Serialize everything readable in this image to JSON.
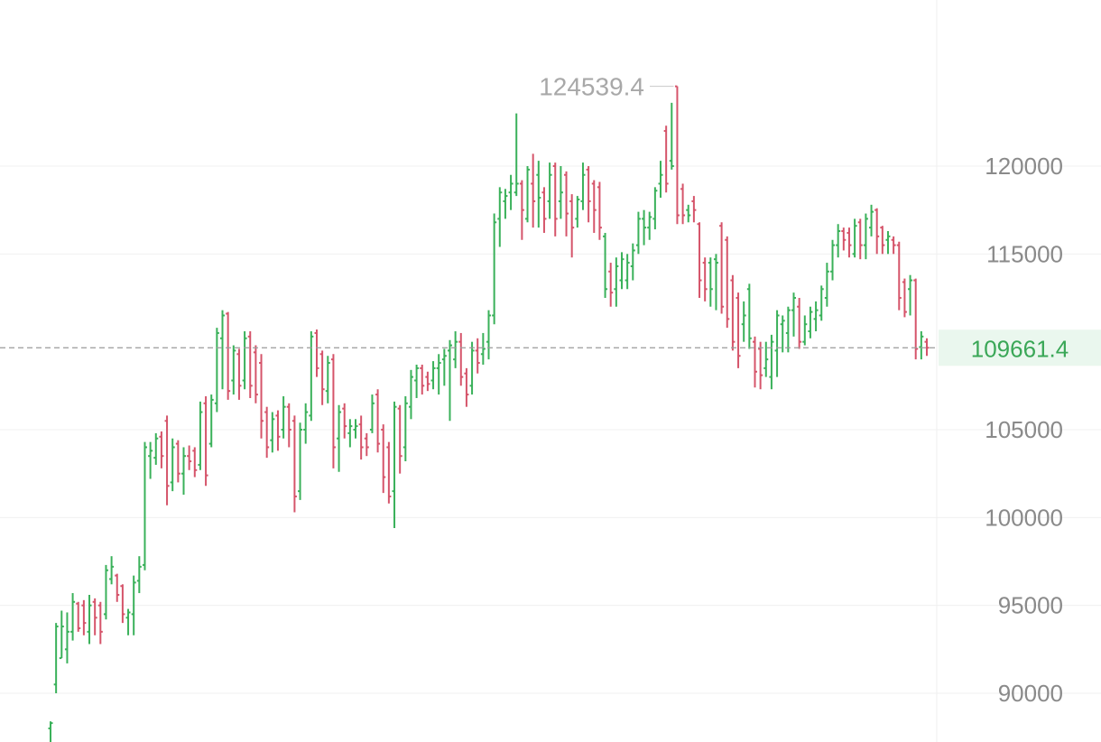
{
  "chart_data": {
    "type": "ohlc",
    "y_axis": {
      "position": "right",
      "ylim": [
        88000,
        126500
      ],
      "ticks": [
        120000,
        115000,
        105000,
        100000,
        95000,
        90000
      ],
      "tick_labels": [
        "120000",
        "115000",
        "105000",
        "100000",
        "95000",
        "90000"
      ],
      "grid": true
    },
    "annotations": {
      "max_price_label": "124539.4",
      "max_price": 124539.4,
      "last_price_label": "109661.4",
      "last_price": 109661.4
    },
    "colors": {
      "up": "#3ab15a",
      "down": "#d5546a",
      "grid": "#f0f0f0",
      "last_price_line": "#9a9a9a",
      "last_price_bg": "#eaf7ee",
      "last_price_text": "#3aa757",
      "max_label": "#a8a8a8"
    },
    "bars": [
      {
        "o": 88000,
        "h": 88400,
        "l": 87000,
        "c": 88300,
        "up": true
      },
      {
        "o": 90500,
        "h": 94000,
        "l": 90000,
        "c": 93800,
        "up": true
      },
      {
        "o": 92000,
        "h": 94700,
        "l": 92000,
        "c": 93800,
        "up": true
      },
      {
        "o": 92500,
        "h": 94600,
        "l": 91700,
        "c": 93500,
        "up": true
      },
      {
        "o": 93500,
        "h": 95700,
        "l": 93000,
        "c": 95200,
        "up": true
      },
      {
        "o": 95100,
        "h": 95200,
        "l": 93500,
        "c": 93700,
        "up": false
      },
      {
        "o": 95000,
        "h": 95300,
        "l": 93300,
        "c": 94000,
        "up": false
      },
      {
        "o": 93500,
        "h": 95600,
        "l": 92800,
        "c": 95000,
        "up": true
      },
      {
        "o": 95200,
        "h": 95400,
        "l": 93300,
        "c": 94300,
        "up": false
      },
      {
        "o": 95000,
        "h": 95200,
        "l": 92800,
        "c": 93500,
        "up": false
      },
      {
        "o": 94500,
        "h": 97300,
        "l": 94200,
        "c": 97000,
        "up": true
      },
      {
        "o": 96500,
        "h": 97800,
        "l": 96200,
        "c": 97200,
        "up": true
      },
      {
        "o": 96700,
        "h": 96800,
        "l": 95200,
        "c": 95600,
        "up": false
      },
      {
        "o": 96100,
        "h": 96200,
        "l": 94000,
        "c": 94500,
        "up": false
      },
      {
        "o": 94300,
        "h": 94800,
        "l": 93300,
        "c": 94600,
        "up": true
      },
      {
        "o": 94500,
        "h": 96700,
        "l": 93300,
        "c": 96300,
        "up": true
      },
      {
        "o": 96400,
        "h": 97800,
        "l": 95700,
        "c": 97200,
        "up": true
      },
      {
        "o": 97300,
        "h": 104300,
        "l": 97000,
        "c": 104000,
        "up": true
      },
      {
        "o": 103500,
        "h": 104300,
        "l": 102200,
        "c": 103800,
        "up": true
      },
      {
        "o": 103400,
        "h": 104800,
        "l": 103000,
        "c": 104500,
        "up": true
      },
      {
        "o": 104600,
        "h": 104900,
        "l": 102800,
        "c": 103500,
        "up": false
      },
      {
        "o": 105500,
        "h": 105800,
        "l": 100700,
        "c": 101800,
        "up": false
      },
      {
        "o": 102000,
        "h": 104500,
        "l": 101500,
        "c": 104000,
        "up": true
      },
      {
        "o": 104200,
        "h": 104400,
        "l": 102000,
        "c": 102500,
        "up": false
      },
      {
        "o": 102500,
        "h": 104000,
        "l": 101300,
        "c": 103500,
        "up": true
      },
      {
        "o": 103500,
        "h": 104100,
        "l": 102700,
        "c": 103200,
        "up": false
      },
      {
        "o": 103800,
        "h": 104000,
        "l": 102300,
        "c": 102700,
        "up": false
      },
      {
        "o": 103000,
        "h": 106600,
        "l": 102700,
        "c": 106000,
        "up": true
      },
      {
        "o": 106500,
        "h": 106900,
        "l": 101800,
        "c": 102400,
        "up": false
      },
      {
        "o": 104200,
        "h": 107000,
        "l": 104000,
        "c": 106700,
        "up": true
      },
      {
        "o": 106500,
        "h": 110800,
        "l": 106000,
        "c": 110500,
        "up": true
      },
      {
        "o": 110200,
        "h": 111800,
        "l": 107300,
        "c": 111500,
        "up": true
      },
      {
        "o": 111600,
        "h": 111700,
        "l": 106700,
        "c": 107200,
        "up": false
      },
      {
        "o": 107800,
        "h": 109800,
        "l": 107000,
        "c": 109500,
        "up": true
      },
      {
        "o": 109300,
        "h": 109600,
        "l": 106700,
        "c": 107500,
        "up": false
      },
      {
        "o": 107800,
        "h": 110600,
        "l": 107300,
        "c": 110200,
        "up": true
      },
      {
        "o": 110300,
        "h": 110600,
        "l": 106800,
        "c": 107500,
        "up": false
      },
      {
        "o": 109400,
        "h": 109800,
        "l": 106500,
        "c": 107000,
        "up": false
      },
      {
        "o": 108800,
        "h": 109300,
        "l": 104500,
        "c": 105500,
        "up": false
      },
      {
        "o": 106000,
        "h": 106300,
        "l": 103400,
        "c": 104000,
        "up": false
      },
      {
        "o": 104400,
        "h": 106000,
        "l": 103700,
        "c": 105600,
        "up": true
      },
      {
        "o": 105800,
        "h": 106100,
        "l": 103800,
        "c": 104600,
        "up": false
      },
      {
        "o": 105000,
        "h": 106900,
        "l": 104500,
        "c": 106300,
        "up": true
      },
      {
        "o": 106300,
        "h": 106500,
        "l": 104000,
        "c": 105000,
        "up": false
      },
      {
        "o": 105500,
        "h": 105800,
        "l": 100300,
        "c": 101200,
        "up": false
      },
      {
        "o": 101500,
        "h": 105400,
        "l": 101000,
        "c": 105000,
        "up": true
      },
      {
        "o": 105000,
        "h": 106500,
        "l": 104200,
        "c": 106000,
        "up": true
      },
      {
        "o": 105800,
        "h": 110600,
        "l": 105500,
        "c": 110300,
        "up": true
      },
      {
        "o": 110500,
        "h": 110700,
        "l": 108000,
        "c": 108500,
        "up": false
      },
      {
        "o": 109300,
        "h": 109500,
        "l": 106400,
        "c": 107300,
        "up": false
      },
      {
        "o": 107200,
        "h": 109200,
        "l": 106500,
        "c": 108800,
        "up": true
      },
      {
        "o": 109000,
        "h": 109300,
        "l": 102800,
        "c": 104000,
        "up": false
      },
      {
        "o": 104500,
        "h": 106400,
        "l": 102600,
        "c": 106000,
        "up": true
      },
      {
        "o": 106200,
        "h": 106500,
        "l": 104500,
        "c": 105200,
        "up": false
      },
      {
        "o": 104800,
        "h": 105600,
        "l": 104000,
        "c": 105200,
        "up": true
      },
      {
        "o": 105000,
        "h": 105600,
        "l": 104500,
        "c": 105200,
        "up": true
      },
      {
        "o": 105300,
        "h": 105800,
        "l": 103300,
        "c": 104000,
        "up": false
      },
      {
        "o": 104500,
        "h": 104800,
        "l": 103500,
        "c": 104000,
        "up": false
      },
      {
        "o": 105000,
        "h": 107000,
        "l": 104800,
        "c": 106500,
        "up": true
      },
      {
        "o": 107000,
        "h": 107300,
        "l": 103700,
        "c": 104200,
        "up": false
      },
      {
        "o": 105000,
        "h": 105300,
        "l": 101400,
        "c": 102300,
        "up": false
      },
      {
        "o": 104000,
        "h": 104300,
        "l": 100800,
        "c": 101200,
        "up": false
      },
      {
        "o": 101500,
        "h": 106600,
        "l": 99400,
        "c": 106300,
        "up": true
      },
      {
        "o": 106200,
        "h": 106400,
        "l": 102500,
        "c": 103500,
        "up": false
      },
      {
        "o": 104000,
        "h": 106900,
        "l": 103200,
        "c": 106500,
        "up": true
      },
      {
        "o": 106300,
        "h": 108400,
        "l": 105600,
        "c": 108000,
        "up": true
      },
      {
        "o": 107800,
        "h": 108700,
        "l": 106800,
        "c": 108500,
        "up": true
      },
      {
        "o": 108500,
        "h": 108700,
        "l": 107000,
        "c": 107500,
        "up": false
      },
      {
        "o": 108000,
        "h": 108300,
        "l": 107200,
        "c": 107600,
        "up": false
      },
      {
        "o": 107800,
        "h": 108900,
        "l": 107300,
        "c": 108500,
        "up": true
      },
      {
        "o": 108500,
        "h": 109300,
        "l": 107000,
        "c": 108800,
        "up": true
      },
      {
        "o": 109000,
        "h": 109600,
        "l": 107500,
        "c": 109200,
        "up": true
      },
      {
        "o": 109500,
        "h": 110100,
        "l": 105500,
        "c": 109800,
        "up": true
      },
      {
        "o": 109000,
        "h": 110600,
        "l": 108500,
        "c": 110000,
        "up": true
      },
      {
        "o": 110000,
        "h": 110500,
        "l": 107500,
        "c": 108000,
        "up": false
      },
      {
        "o": 108200,
        "h": 108500,
        "l": 106300,
        "c": 107000,
        "up": false
      },
      {
        "o": 107500,
        "h": 110000,
        "l": 107000,
        "c": 109500,
        "up": true
      },
      {
        "o": 109500,
        "h": 110200,
        "l": 108200,
        "c": 108800,
        "up": false
      },
      {
        "o": 109300,
        "h": 110500,
        "l": 108700,
        "c": 109600,
        "up": true
      },
      {
        "o": 110000,
        "h": 111800,
        "l": 109000,
        "c": 111500,
        "up": true
      },
      {
        "o": 111500,
        "h": 117300,
        "l": 111000,
        "c": 116800,
        "up": true
      },
      {
        "o": 117000,
        "h": 118800,
        "l": 115400,
        "c": 118500,
        "up": true
      },
      {
        "o": 118000,
        "h": 118700,
        "l": 117000,
        "c": 118300,
        "up": true
      },
      {
        "o": 118500,
        "h": 119500,
        "l": 117500,
        "c": 119000,
        "up": true
      },
      {
        "o": 118500,
        "h": 123000,
        "l": 118300,
        "c": 119000,
        "up": true
      },
      {
        "o": 119000,
        "h": 119200,
        "l": 115800,
        "c": 117500,
        "up": false
      },
      {
        "o": 117000,
        "h": 120000,
        "l": 116800,
        "c": 119800,
        "up": true
      },
      {
        "o": 119000,
        "h": 120700,
        "l": 116500,
        "c": 118000,
        "up": false
      },
      {
        "o": 119500,
        "h": 120300,
        "l": 116500,
        "c": 118200,
        "up": true
      },
      {
        "o": 118500,
        "h": 118800,
        "l": 116200,
        "c": 117000,
        "up": false
      },
      {
        "o": 118000,
        "h": 120200,
        "l": 117000,
        "c": 119500,
        "up": true
      },
      {
        "o": 120000,
        "h": 120200,
        "l": 116000,
        "c": 117000,
        "up": false
      },
      {
        "o": 118000,
        "h": 120000,
        "l": 117000,
        "c": 118500,
        "up": true
      },
      {
        "o": 119500,
        "h": 119700,
        "l": 116000,
        "c": 117300,
        "up": false
      },
      {
        "o": 118000,
        "h": 118400,
        "l": 114800,
        "c": 116500,
        "up": false
      },
      {
        "o": 117000,
        "h": 118300,
        "l": 116500,
        "c": 118100,
        "up": true
      },
      {
        "o": 118000,
        "h": 120200,
        "l": 117500,
        "c": 119500,
        "up": true
      },
      {
        "o": 119800,
        "h": 120000,
        "l": 116800,
        "c": 118000,
        "up": false
      },
      {
        "o": 119000,
        "h": 119200,
        "l": 116200,
        "c": 117500,
        "up": false
      },
      {
        "o": 118800,
        "h": 119100,
        "l": 115800,
        "c": 116500,
        "up": false
      },
      {
        "o": 116000,
        "h": 116200,
        "l": 112500,
        "c": 113000,
        "up": true
      },
      {
        "o": 114000,
        "h": 114500,
        "l": 112000,
        "c": 112800,
        "up": false
      },
      {
        "o": 113000,
        "h": 114800,
        "l": 112000,
        "c": 114300,
        "up": true
      },
      {
        "o": 113500,
        "h": 115100,
        "l": 113000,
        "c": 114700,
        "up": true
      },
      {
        "o": 113500,
        "h": 115000,
        "l": 113000,
        "c": 114500,
        "up": true
      },
      {
        "o": 114300,
        "h": 115600,
        "l": 113500,
        "c": 115200,
        "up": true
      },
      {
        "o": 115500,
        "h": 117400,
        "l": 115000,
        "c": 117000,
        "up": true
      },
      {
        "o": 117000,
        "h": 117500,
        "l": 115500,
        "c": 116500,
        "up": true
      },
      {
        "o": 116500,
        "h": 117400,
        "l": 115800,
        "c": 117100,
        "up": true
      },
      {
        "o": 117000,
        "h": 118800,
        "l": 116400,
        "c": 118600,
        "up": true
      },
      {
        "o": 119000,
        "h": 120300,
        "l": 118200,
        "c": 119500,
        "up": true
      },
      {
        "o": 122000,
        "h": 122300,
        "l": 118500,
        "c": 119000,
        "up": false
      },
      {
        "o": 120300,
        "h": 123600,
        "l": 119800,
        "c": 120000,
        "up": true
      },
      {
        "o": 124539.4,
        "h": 124539.4,
        "l": 116700,
        "c": 117200,
        "up": false
      },
      {
        "o": 118700,
        "h": 119000,
        "l": 116700,
        "c": 117200,
        "up": false
      },
      {
        "o": 117500,
        "h": 117800,
        "l": 116800,
        "c": 117200,
        "up": true
      },
      {
        "o": 118000,
        "h": 118300,
        "l": 116800,
        "c": 117500,
        "up": false
      },
      {
        "o": 116700,
        "h": 116800,
        "l": 112500,
        "c": 113500,
        "up": false
      },
      {
        "o": 114500,
        "h": 114800,
        "l": 112300,
        "c": 113000,
        "up": false
      },
      {
        "o": 114500,
        "h": 114800,
        "l": 112000,
        "c": 113000,
        "up": true
      },
      {
        "o": 114700,
        "h": 115000,
        "l": 111800,
        "c": 114500,
        "up": true
      },
      {
        "o": 116600,
        "h": 116800,
        "l": 111600,
        "c": 112000,
        "up": false
      },
      {
        "o": 115800,
        "h": 116000,
        "l": 110800,
        "c": 111300,
        "up": false
      },
      {
        "o": 113500,
        "h": 113800,
        "l": 109500,
        "c": 110000,
        "up": false
      },
      {
        "o": 112500,
        "h": 112800,
        "l": 108500,
        "c": 109200,
        "up": false
      },
      {
        "o": 111000,
        "h": 112300,
        "l": 110000,
        "c": 111500,
        "up": true
      },
      {
        "o": 113000,
        "h": 113300,
        "l": 109600,
        "c": 110200,
        "up": true
      },
      {
        "o": 110000,
        "h": 110300,
        "l": 107400,
        "c": 108300,
        "up": false
      },
      {
        "o": 109600,
        "h": 110000,
        "l": 107300,
        "c": 108100,
        "up": false
      },
      {
        "o": 108500,
        "h": 110000,
        "l": 108000,
        "c": 109000,
        "up": true
      },
      {
        "o": 108000,
        "h": 110400,
        "l": 107300,
        "c": 110000,
        "up": true
      },
      {
        "o": 109500,
        "h": 111800,
        "l": 108000,
        "c": 111500,
        "up": true
      },
      {
        "o": 111000,
        "h": 111500,
        "l": 109400,
        "c": 111200,
        "up": true
      },
      {
        "o": 110500,
        "h": 112000,
        "l": 109400,
        "c": 111800,
        "up": true
      },
      {
        "o": 111800,
        "h": 112800,
        "l": 110300,
        "c": 112500,
        "up": true
      },
      {
        "o": 112000,
        "h": 112500,
        "l": 109600,
        "c": 110000,
        "up": false
      },
      {
        "o": 110000,
        "h": 111500,
        "l": 109800,
        "c": 111000,
        "up": true
      },
      {
        "o": 110600,
        "h": 112000,
        "l": 110200,
        "c": 111700,
        "up": true
      },
      {
        "o": 111300,
        "h": 112300,
        "l": 110600,
        "c": 111800,
        "up": true
      },
      {
        "o": 111500,
        "h": 113200,
        "l": 111200,
        "c": 113000,
        "up": true
      },
      {
        "o": 112500,
        "h": 114500,
        "l": 112000,
        "c": 114000,
        "up": true
      },
      {
        "o": 114000,
        "h": 115800,
        "l": 113500,
        "c": 115500,
        "up": true
      },
      {
        "o": 115500,
        "h": 116700,
        "l": 114800,
        "c": 116300,
        "up": true
      },
      {
        "o": 116300,
        "h": 116500,
        "l": 115200,
        "c": 115800,
        "up": false
      },
      {
        "o": 116200,
        "h": 116500,
        "l": 114800,
        "c": 115500,
        "up": false
      },
      {
        "o": 115000,
        "h": 117000,
        "l": 114800,
        "c": 116600,
        "up": true
      },
      {
        "o": 116800,
        "h": 117000,
        "l": 114700,
        "c": 115500,
        "up": false
      },
      {
        "o": 115500,
        "h": 117300,
        "l": 114700,
        "c": 117000,
        "up": true
      },
      {
        "o": 116500,
        "h": 117800,
        "l": 116000,
        "c": 117400,
        "up": true
      },
      {
        "o": 117500,
        "h": 117600,
        "l": 115000,
        "c": 116000,
        "up": false
      },
      {
        "o": 116500,
        "h": 116600,
        "l": 115000,
        "c": 115500,
        "up": false
      },
      {
        "o": 115800,
        "h": 116300,
        "l": 115000,
        "c": 116000,
        "up": true
      },
      {
        "o": 115800,
        "h": 116000,
        "l": 115000,
        "c": 115500,
        "up": false
      },
      {
        "o": 115500,
        "h": 115700,
        "l": 111800,
        "c": 112500,
        "up": false
      },
      {
        "o": 113400,
        "h": 113600,
        "l": 111400,
        "c": 111700,
        "up": false
      },
      {
        "o": 113000,
        "h": 113800,
        "l": 111500,
        "c": 113500,
        "up": true
      },
      {
        "o": 113500,
        "h": 113600,
        "l": 109000,
        "c": 109600,
        "up": false
      },
      {
        "o": 109700,
        "h": 110600,
        "l": 109000,
        "c": 110300,
        "up": true
      },
      {
        "o": 110000,
        "h": 110200,
        "l": 109200,
        "c": 109661.4,
        "up": false
      }
    ]
  }
}
